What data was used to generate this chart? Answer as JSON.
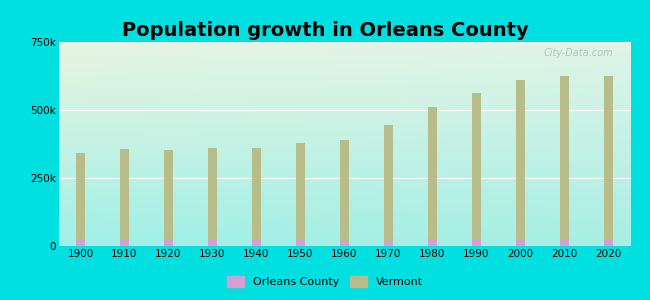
{
  "title": "Population growth in Orleans County",
  "years": [
    1900,
    1910,
    1920,
    1930,
    1940,
    1950,
    1960,
    1970,
    1980,
    1990,
    2000,
    2010,
    2020
  ],
  "vermont_values": [
    343641,
    355956,
    352428,
    359611,
    359231,
    377747,
    389881,
    444330,
    511456,
    562758,
    608827,
    625741,
    623251
  ],
  "orleans_values": [
    23211,
    25080,
    26091,
    24976,
    23839,
    22029,
    20143,
    20153,
    23440,
    24053,
    26277,
    27231,
    27393
  ],
  "vermont_color": "#b8bc88",
  "orleans_color": "#d4a0d4",
  "bg_color": "#00e0e0",
  "plot_bg_topleft": "#e8f5e0",
  "plot_bg_bottomright": "#a0f0e8",
  "title_fontsize": 14,
  "bar_width": 0.22,
  "ylim": [
    0,
    750000
  ],
  "yticks": [
    0,
    250000,
    500000,
    750000
  ],
  "ytick_labels": [
    "0",
    "250k",
    "500k",
    "750k"
  ],
  "watermark": "City-Data.com",
  "legend_orleans": "Orleans County",
  "legend_vermont": "Vermont"
}
